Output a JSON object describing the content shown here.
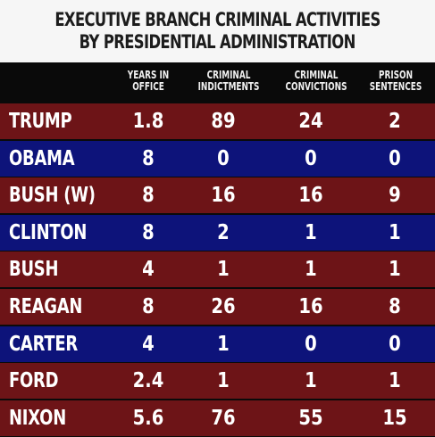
{
  "title": {
    "line1": "EXECUTIVE BRANCH CRIMINAL ACTIVITIES",
    "line2": "BY PRESIDENTIAL ADMINISTRATION"
  },
  "columns": [
    {
      "line1": "YEARS IN",
      "line2": "OFFICE"
    },
    {
      "line1": "CRIMINAL",
      "line2": "INDICTMENTS"
    },
    {
      "line1": "CRIMINAL",
      "line2": "CONVICTIONS"
    },
    {
      "line1": "PRISON",
      "line2": "SENTENCES"
    }
  ],
  "rows": [
    {
      "name": "TRUMP",
      "years": "1.8",
      "indictments": "89",
      "convictions": "24",
      "sentences": "2",
      "color": "red"
    },
    {
      "name": "OBAMA",
      "years": "8",
      "indictments": "0",
      "convictions": "0",
      "sentences": "0",
      "color": "blue"
    },
    {
      "name": "BUSH (W)",
      "years": "8",
      "indictments": "16",
      "convictions": "16",
      "sentences": "9",
      "color": "red"
    },
    {
      "name": "CLINTON",
      "years": "8",
      "indictments": "2",
      "convictions": "1",
      "sentences": "1",
      "color": "blue"
    },
    {
      "name": "BUSH",
      "years": "4",
      "indictments": "1",
      "convictions": "1",
      "sentences": "1",
      "color": "red"
    },
    {
      "name": "REAGAN",
      "years": "8",
      "indictments": "26",
      "convictions": "16",
      "sentences": "8",
      "color": "red"
    },
    {
      "name": "CARTER",
      "years": "4",
      "indictments": "1",
      "convictions": "0",
      "sentences": "0",
      "color": "blue"
    },
    {
      "name": "FORD",
      "years": "2.4",
      "indictments": "1",
      "convictions": "1",
      "sentences": "1",
      "color": "red"
    },
    {
      "name": "NIXON",
      "years": "5.6",
      "indictments": "76",
      "convictions": "55",
      "sentences": "15",
      "color": "red"
    }
  ],
  "colors": {
    "red_row": "#6d1417",
    "blue_row": "#0d137a",
    "header_bg": "#0a0a0a",
    "title_bg": "#f6f6f6",
    "title_text": "#1c1c1c"
  }
}
